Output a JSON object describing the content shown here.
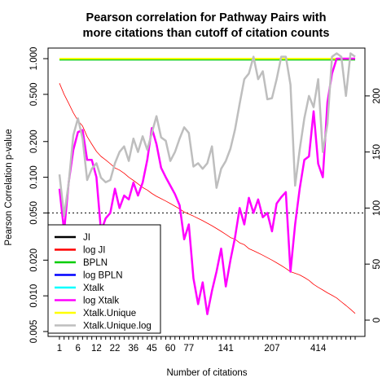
{
  "chart_data": {
    "type": "line",
    "title_lines": [
      "Pearson correlation for Pathway Pairs with",
      "more citations than cutoff of citation counts"
    ],
    "xlabel": "Number of citations",
    "ylabel": "Pearson Correlation p-value",
    "x_tick_labels": [
      "1",
      "6",
      "12",
      "22",
      "36",
      "45",
      "60",
      "77",
      "141",
      "207",
      "414"
    ],
    "left_axis": {
      "scale": "log",
      "ylim": [
        0.005,
        1.0
      ],
      "ticks": [
        "1.000",
        "0.500",
        "0.200",
        "0.100",
        "0.050",
        "0.020",
        "0.010",
        "0.005"
      ]
    },
    "right_axis": {
      "scale": "linear",
      "ticks": [
        "0",
        "50",
        "100",
        "150",
        "200"
      ]
    },
    "significance_line": 0.05,
    "legend": [
      {
        "name": "JI",
        "color": "#000000"
      },
      {
        "name": "log JI",
        "color": "#ff0000"
      },
      {
        "name": "BPLN",
        "color": "#00cd00"
      },
      {
        "name": "log BPLN",
        "color": "#0000ff"
      },
      {
        "name": "Xtalk",
        "color": "#00ffff"
      },
      {
        "name": "log Xtalk",
        "color": "#ff00ff"
      },
      {
        "name": "Xtalk.Unique",
        "color": "#ffff00"
      },
      {
        "name": "Xtalk.Unique.log",
        "color": "#bebebe"
      }
    ],
    "series": [
      {
        "name": "JI",
        "axis": "left",
        "color": "#000000",
        "width": 1.5,
        "values": [
          0.99,
          0.99,
          0.99,
          0.99,
          0.99,
          0.99,
          0.99,
          0.99,
          0.99,
          0.99,
          0.99,
          0.99,
          0.99,
          0.99,
          0.99,
          0.99,
          0.99,
          0.99,
          0.99,
          0.99,
          0.99,
          0.99,
          0.99,
          0.99,
          0.99,
          0.99,
          0.99,
          0.99,
          0.99,
          0.99,
          0.99,
          0.99,
          0.99,
          0.99,
          0.99,
          0.99,
          0.99,
          0.99,
          0.99,
          0.99,
          0.99,
          0.99,
          0.99,
          0.99,
          0.99,
          0.99,
          0.99,
          0.99,
          0.99,
          0.99,
          0.99,
          0.99,
          0.99,
          0.99,
          0.99,
          0.99,
          0.99,
          0.99,
          0.99,
          0.99,
          0.99,
          0.99,
          0.99,
          0.99,
          0.99
        ]
      },
      {
        "name": "BPLN",
        "axis": "left",
        "color": "#00cd00",
        "width": 2,
        "values": [
          0.98,
          0.98,
          0.98,
          0.98,
          0.98,
          0.98,
          0.98,
          0.98,
          0.98,
          0.98,
          0.98,
          0.98,
          0.98,
          0.98,
          0.98,
          0.98,
          0.98,
          0.98,
          0.98,
          0.98,
          0.98,
          0.98,
          0.98,
          0.98,
          0.98,
          0.98,
          0.98,
          0.98,
          0.98,
          0.98,
          0.98,
          0.98,
          0.98,
          0.98,
          0.98,
          0.98,
          0.98,
          0.98,
          0.98,
          0.98,
          0.98,
          0.98,
          0.98,
          0.98,
          0.98,
          0.98,
          0.98,
          0.98,
          0.98,
          0.98,
          0.98,
          0.98,
          0.98,
          0.98,
          0.98,
          0.98,
          0.98,
          0.98,
          0.98,
          0.98,
          0.98,
          0.98,
          0.98,
          0.98,
          0.98
        ]
      },
      {
        "name": "Xtalk.Unique",
        "axis": "left",
        "color": "#ffff00",
        "width": 2,
        "values": [
          1.0,
          1.0,
          1.0,
          1.0,
          1.0,
          1.0,
          1.0,
          1.0,
          1.0,
          1.0,
          1.0,
          1.0,
          1.0,
          1.0,
          1.0,
          1.0,
          1.0,
          1.0,
          1.0,
          1.0,
          1.0,
          1.0,
          1.0,
          1.0,
          1.0,
          1.0,
          1.0,
          1.0,
          1.0,
          1.0,
          1.0,
          1.0,
          1.0,
          1.0,
          1.0,
          1.0,
          1.0,
          1.0,
          1.0,
          1.0,
          1.0,
          1.0,
          1.0,
          1.0,
          1.0,
          1.0,
          1.0,
          1.0,
          1.0,
          1.0,
          1.0,
          1.0,
          1.0,
          1.0,
          1.0,
          1.0,
          1.0,
          1.0,
          1.0,
          1.0,
          1.0,
          1.0,
          1.0,
          1.0,
          1.0
        ]
      },
      {
        "name": "log JI",
        "axis": "left",
        "color": "#ff0000",
        "width": 0.8,
        "values": [
          0.62,
          0.5,
          0.42,
          0.35,
          0.3,
          0.27,
          0.22,
          0.19,
          0.165,
          0.15,
          0.14,
          0.13,
          0.12,
          0.115,
          0.108,
          0.1,
          0.094,
          0.088,
          0.082,
          0.078,
          0.073,
          0.069,
          0.066,
          0.063,
          0.06,
          0.057,
          0.054,
          0.051,
          0.049,
          0.047,
          0.045,
          0.043,
          0.041,
          0.039,
          0.037,
          0.035,
          0.033,
          0.031,
          0.03,
          0.028,
          0.027,
          0.025,
          0.024,
          0.023,
          0.022,
          0.021,
          0.02,
          0.019,
          0.018,
          0.017,
          0.016,
          0.0155,
          0.015,
          0.0143,
          0.0135,
          0.0125,
          0.0118,
          0.0112,
          0.0106,
          0.0101,
          0.0096,
          0.0089,
          0.0083,
          0.0077,
          0.0071
        ]
      },
      {
        "name": "log Xtalk",
        "axis": "left",
        "color": "#ff00ff",
        "width": 2.5,
        "values": [
          0.08,
          0.035,
          0.09,
          0.17,
          0.24,
          0.25,
          0.14,
          0.14,
          0.1,
          0.035,
          0.045,
          0.05,
          0.08,
          0.055,
          0.07,
          0.065,
          0.09,
          0.07,
          0.09,
          0.14,
          0.26,
          0.19,
          0.12,
          0.1,
          0.085,
          0.072,
          0.058,
          0.03,
          0.04,
          0.014,
          0.0085,
          0.013,
          0.007,
          0.011,
          0.016,
          0.025,
          0.012,
          0.02,
          0.031,
          0.055,
          0.04,
          0.067,
          0.05,
          0.065,
          0.046,
          0.05,
          0.035,
          0.06,
          0.068,
          0.075,
          0.016,
          0.04,
          0.08,
          0.14,
          0.15,
          0.36,
          0.13,
          0.1,
          0.43,
          0.75,
          1.0,
          1.0,
          1.0,
          1.0,
          1.0
        ]
      },
      {
        "name": "Xtalk.Unique.log",
        "axis": "right",
        "color": "#bebebe",
        "width": 2.5,
        "values": [
          130,
          93,
          122,
          165,
          180,
          162,
          125,
          135,
          140,
          127,
          123,
          125,
          140,
          150,
          155,
          142,
          162,
          150,
          164,
          152,
          167,
          182,
          163,
          160,
          142,
          150,
          162,
          172,
          167,
          137,
          140,
          135,
          140,
          155,
          118,
          135,
          142,
          153,
          170,
          193,
          215,
          220,
          235,
          215,
          222,
          197,
          198,
          215,
          235,
          235,
          210,
          120,
          152,
          180,
          200,
          190,
          215,
          150,
          175,
          235,
          238,
          235,
          200,
          238,
          235
        ]
      }
    ]
  }
}
